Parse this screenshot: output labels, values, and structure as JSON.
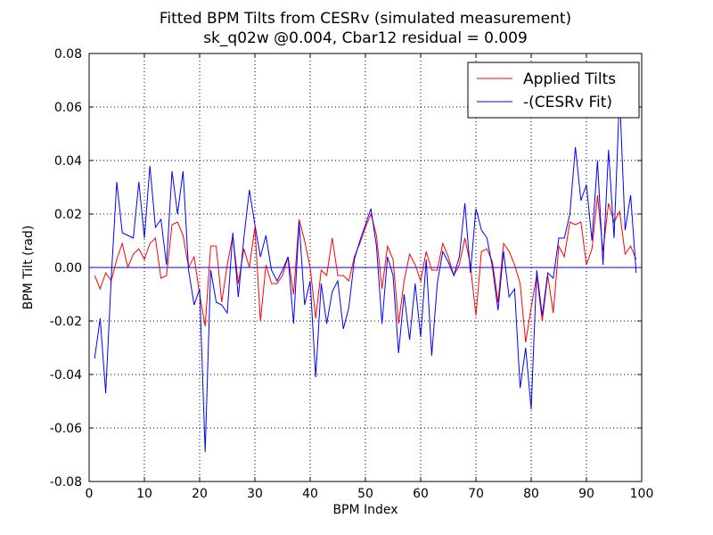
{
  "chart_data": {
    "type": "line",
    "title": "Fitted BPM Tilts from CESRv (simulated measurement)",
    "subtitle": "sk_q02w @0.004, Cbar12 residual = 0.009",
    "x_label": "BPM Index",
    "y_label": "BPM Tilt (rad)",
    "x": [
      1,
      2,
      3,
      4,
      5,
      6,
      7,
      8,
      9,
      10,
      11,
      12,
      13,
      14,
      15,
      16,
      17,
      18,
      19,
      20,
      21,
      22,
      23,
      24,
      25,
      26,
      27,
      28,
      29,
      30,
      31,
      32,
      33,
      34,
      35,
      36,
      37,
      38,
      39,
      40,
      41,
      42,
      43,
      44,
      45,
      46,
      47,
      48,
      49,
      50,
      51,
      52,
      53,
      54,
      55,
      56,
      57,
      58,
      59,
      60,
      61,
      62,
      63,
      64,
      65,
      66,
      67,
      68,
      69,
      70,
      71,
      72,
      73,
      74,
      75,
      76,
      77,
      78,
      79,
      80,
      81,
      82,
      83,
      84,
      85,
      86,
      87,
      88,
      89,
      90,
      91,
      92,
      93,
      94,
      95,
      96,
      97,
      98,
      99
    ],
    "series": [
      {
        "name": "Applied Tilts",
        "color": "#ff0000",
        "values": [
          -0.003,
          -0.008,
          -0.002,
          -0.005,
          0.003,
          0.009,
          0.0,
          0.005,
          0.007,
          0.003,
          0.009,
          0.011,
          -0.004,
          -0.003,
          0.016,
          0.017,
          0.012,
          0.0,
          0.004,
          -0.01,
          -0.022,
          0.008,
          0.008,
          -0.013,
          0.001,
          0.012,
          -0.006,
          0.007,
          0.0,
          0.015,
          -0.02,
          0.001,
          -0.006,
          -0.006,
          -0.003,
          0.004,
          -0.01,
          0.018,
          0.01,
          0.0,
          -0.019,
          -0.001,
          -0.003,
          0.011,
          -0.003,
          -0.003,
          -0.005,
          0.004,
          0.009,
          0.015,
          0.02,
          0.012,
          -0.008,
          0.008,
          0.003,
          -0.021,
          -0.005,
          0.005,
          0.001,
          -0.005,
          0.006,
          -0.001,
          -0.001,
          0.009,
          0.004,
          -0.003,
          0.001,
          0.011,
          0.001,
          -0.018,
          0.006,
          0.007,
          0.002,
          -0.013,
          0.009,
          0.006,
          0.001,
          -0.006,
          -0.028,
          -0.015,
          -0.003,
          -0.02,
          -0.003,
          -0.017,
          0.008,
          0.004,
          0.017,
          0.016,
          0.017,
          0.001,
          0.007,
          0.027,
          0.006,
          0.024,
          0.017,
          0.021,
          0.005,
          0.008,
          0.003
        ]
      },
      {
        "name": "-(CESRv Fit)",
        "color": "#0000ff",
        "values": [
          -0.034,
          -0.019,
          -0.047,
          -0.004,
          0.032,
          0.013,
          0.012,
          0.011,
          0.032,
          0.011,
          0.038,
          0.015,
          0.018,
          0.001,
          0.036,
          0.02,
          0.036,
          -0.001,
          -0.014,
          -0.008,
          -0.069,
          -0.001,
          -0.013,
          -0.014,
          -0.017,
          0.013,
          -0.011,
          0.011,
          0.029,
          0.016,
          0.004,
          0.012,
          -0.001,
          -0.005,
          -0.001,
          0.004,
          -0.021,
          0.017,
          -0.014,
          -0.005,
          -0.041,
          -0.006,
          -0.021,
          -0.009,
          -0.005,
          -0.023,
          -0.015,
          0.003,
          0.01,
          0.016,
          0.022,
          0.008,
          -0.021,
          0.004,
          -0.003,
          -0.032,
          -0.01,
          -0.027,
          -0.006,
          -0.026,
          0.003,
          -0.033,
          -0.006,
          0.006,
          0.002,
          -0.003,
          0.004,
          0.024,
          -0.002,
          0.022,
          0.014,
          0.011,
          0.0,
          -0.016,
          0.006,
          -0.011,
          -0.008,
          -0.045,
          -0.03,
          -0.053,
          -0.001,
          -0.018,
          -0.002,
          -0.004,
          0.011,
          0.011,
          0.02,
          0.045,
          0.025,
          0.031,
          0.01,
          0.04,
          0.001,
          0.044,
          0.011,
          0.065,
          0.014,
          0.027,
          -0.002
        ]
      }
    ],
    "xlim": [
      0,
      100
    ],
    "xticks": [
      0,
      10,
      20,
      30,
      40,
      50,
      60,
      70,
      80,
      90,
      100
    ],
    "ylim": [
      -0.08,
      0.08
    ],
    "yticks": [
      -0.08,
      -0.06,
      -0.04,
      -0.02,
      {
        "value": 0,
        "label": "0.00"
      },
      0.02,
      0.04,
      0.06,
      0.08
    ],
    "grid": true,
    "legend": "upper right"
  }
}
